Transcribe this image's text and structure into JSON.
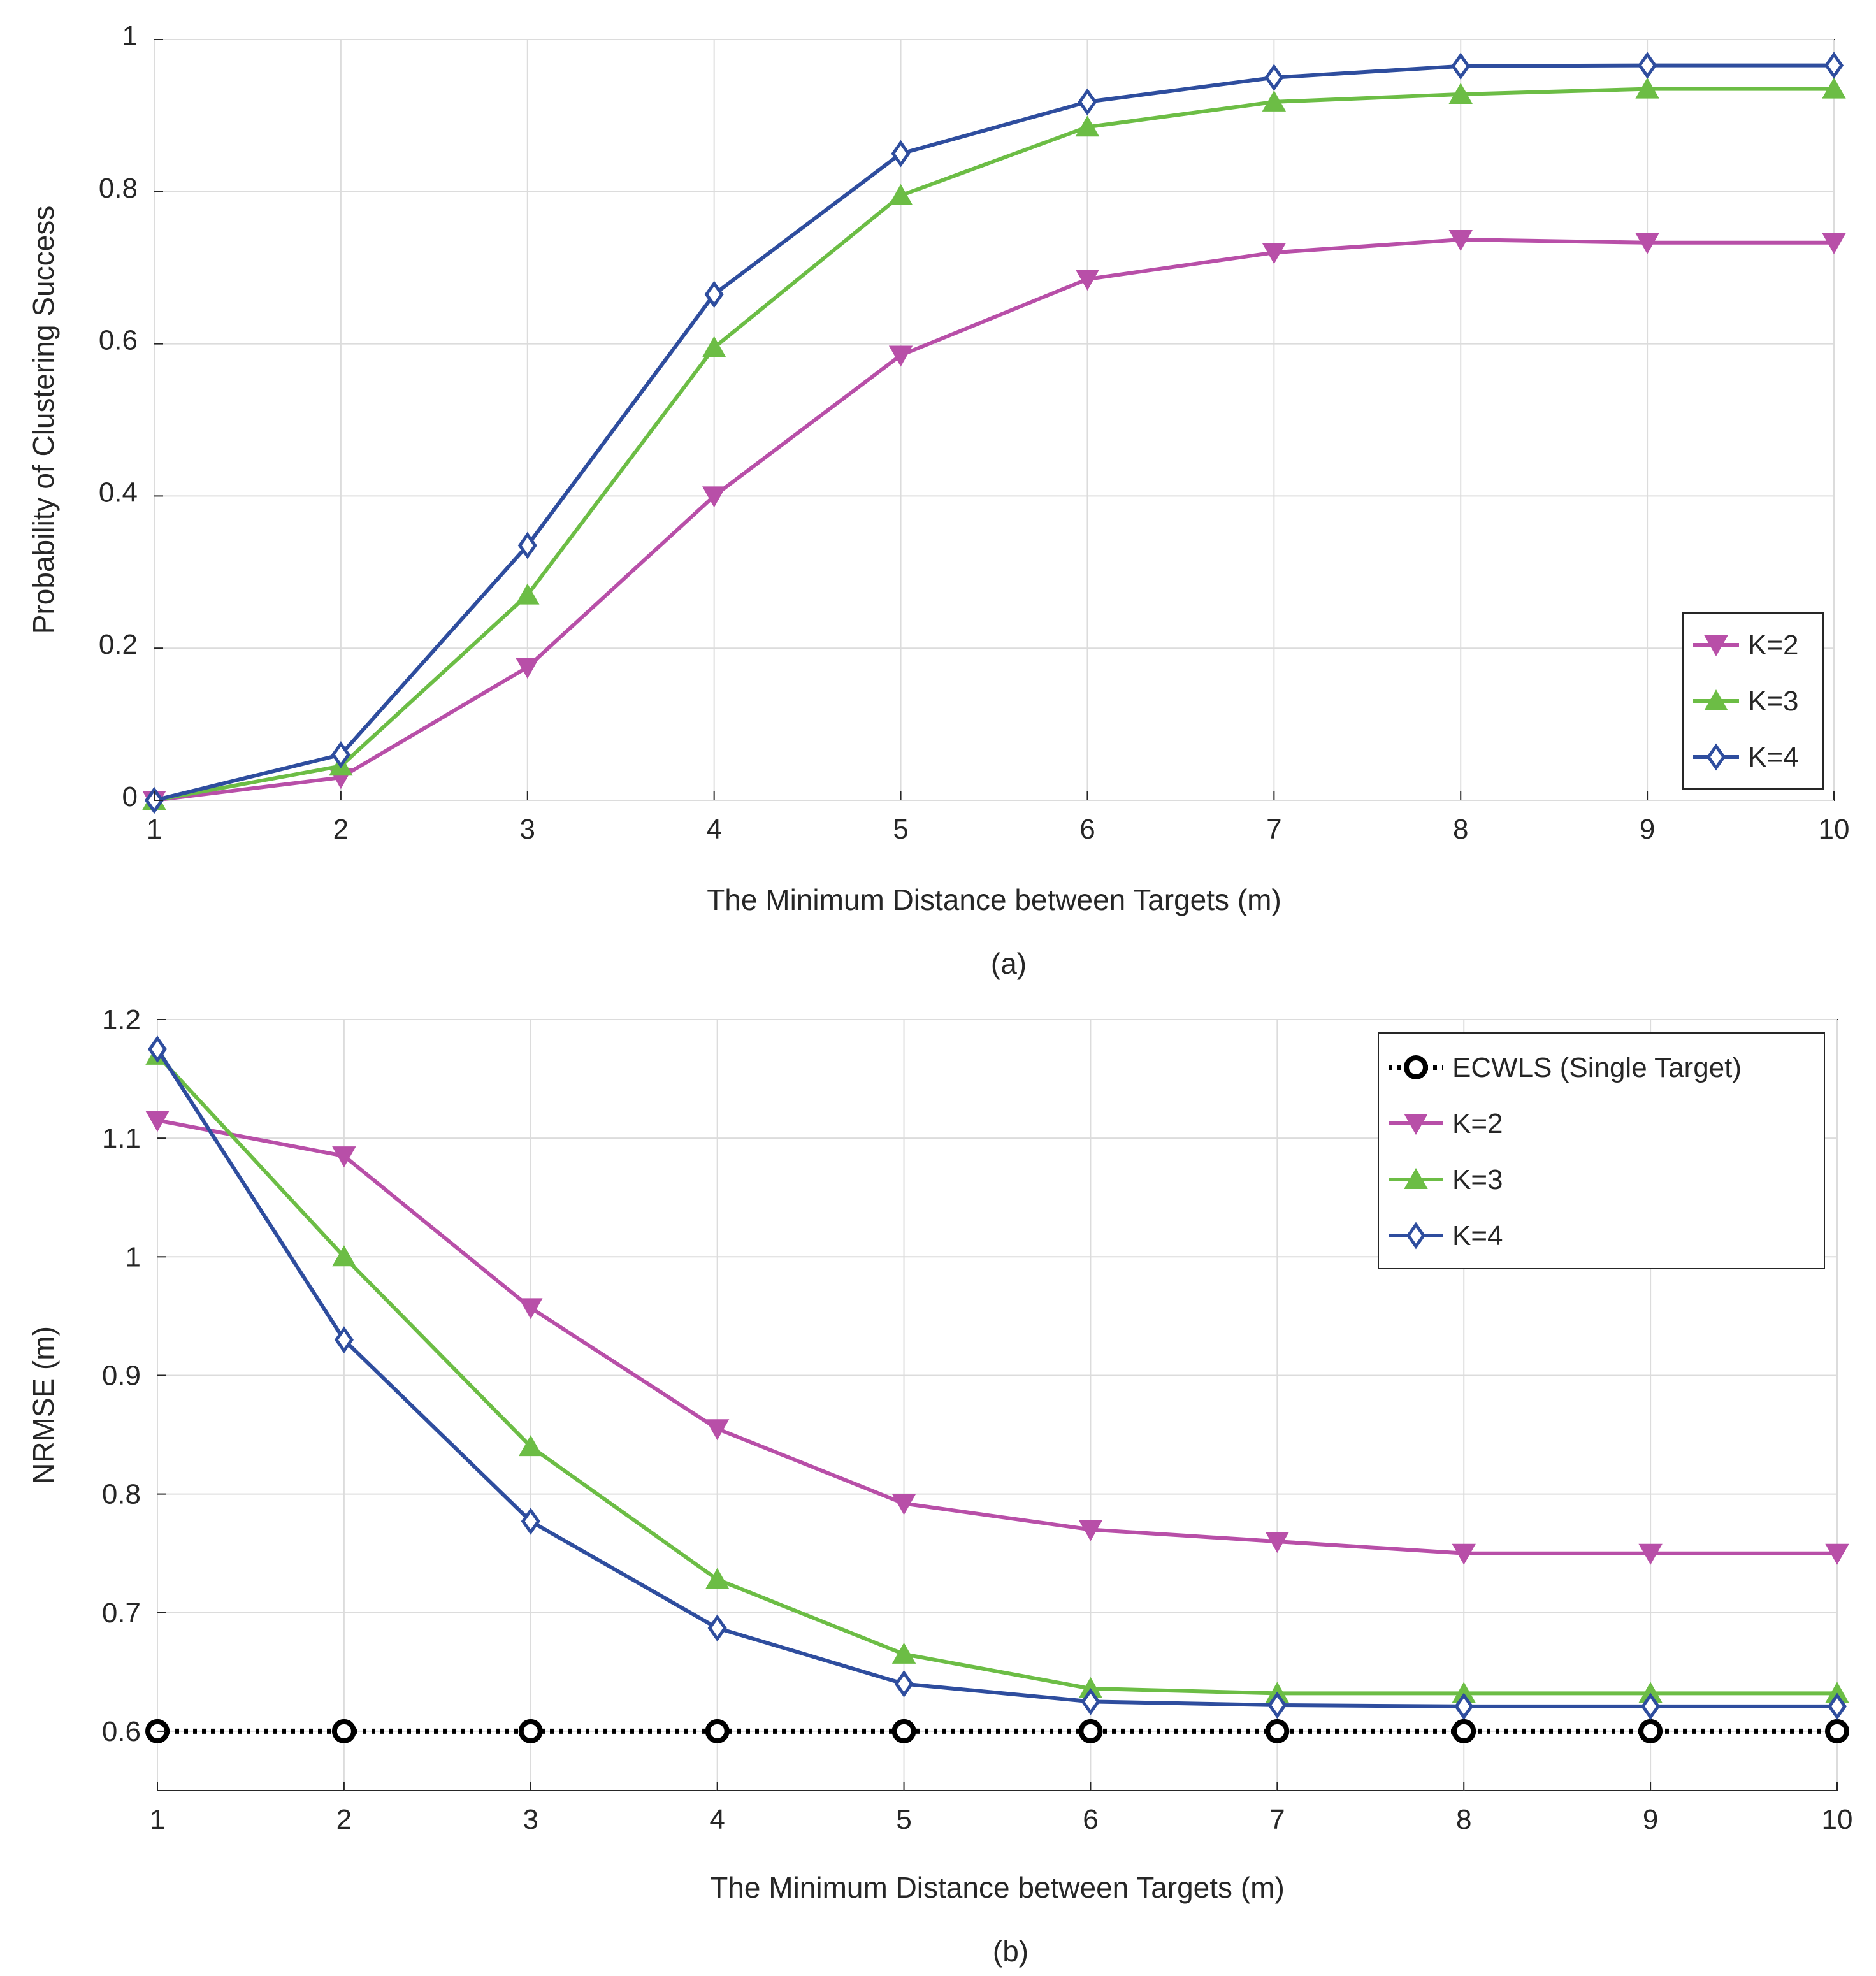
{
  "chart_data": [
    {
      "type": "line",
      "panel_label": "(a)",
      "xlabel": "The Minimum Distance between Targets (m)",
      "ylabel": "Probability of Clustering Success",
      "xlim": [
        1,
        10
      ],
      "ylim": [
        0,
        1
      ],
      "x_ticks": [
        "1",
        "2",
        "3",
        "4",
        "5",
        "6",
        "7",
        "8",
        "9",
        "10"
      ],
      "y_ticks": [
        "0",
        "0.2",
        "0.4",
        "0.6",
        "0.8",
        "1"
      ],
      "grid": true,
      "legend_position": "bottom-right",
      "x": [
        1,
        2,
        3,
        4,
        5,
        6,
        7,
        8,
        9,
        10
      ],
      "series": [
        {
          "name": "K=2",
          "color": "#b84fa8",
          "marker": "triangle-down",
          "values": [
            0.0,
            0.03,
            0.175,
            0.4,
            0.585,
            0.685,
            0.72,
            0.737,
            0.733,
            0.733
          ]
        },
        {
          "name": "K=3",
          "color": "#6cbd45",
          "marker": "triangle-up",
          "values": [
            0.0,
            0.045,
            0.27,
            0.595,
            0.795,
            0.885,
            0.918,
            0.928,
            0.935,
            0.935
          ]
        },
        {
          "name": "K=4",
          "color": "#2e4d9e",
          "marker": "diamond",
          "values": [
            0.0,
            0.06,
            0.335,
            0.665,
            0.85,
            0.918,
            0.95,
            0.965,
            0.966,
            0.966
          ]
        }
      ]
    },
    {
      "type": "line",
      "panel_label": "(b)",
      "xlabel": "The Minimum Distance between Targets (m)",
      "ylabel": "NRMSE (m)",
      "xlim": [
        1,
        10
      ],
      "ylim": [
        0.55,
        1.2
      ],
      "x_ticks": [
        "1",
        "2",
        "3",
        "4",
        "5",
        "6",
        "7",
        "8",
        "9",
        "10"
      ],
      "y_ticks": [
        "0.6",
        "0.7",
        "0.8",
        "0.9",
        "1",
        "1.1",
        "1.2"
      ],
      "grid": true,
      "legend_position": "top-right",
      "x": [
        1,
        2,
        3,
        4,
        5,
        6,
        7,
        8,
        9,
        10
      ],
      "series": [
        {
          "name": "ECWLS (Single Target)",
          "color": "#000000",
          "marker": "circle",
          "dotted": true,
          "values": [
            0.6,
            0.6,
            0.6,
            0.6,
            0.6,
            0.6,
            0.6,
            0.6,
            0.6,
            0.6
          ]
        },
        {
          "name": "K=2",
          "color": "#b84fa8",
          "marker": "triangle-down",
          "values": [
            1.115,
            1.085,
            0.957,
            0.855,
            0.792,
            0.77,
            0.76,
            0.75,
            0.75,
            0.75
          ]
        },
        {
          "name": "K=3",
          "color": "#6cbd45",
          "marker": "triangle-up",
          "values": [
            1.17,
            1.0,
            0.84,
            0.728,
            0.665,
            0.636,
            0.632,
            0.632,
            0.632,
            0.632
          ]
        },
        {
          "name": "K=4",
          "color": "#2e4d9e",
          "marker": "diamond",
          "values": [
            1.175,
            0.93,
            0.777,
            0.687,
            0.64,
            0.625,
            0.622,
            0.621,
            0.621,
            0.621
          ]
        }
      ]
    }
  ]
}
